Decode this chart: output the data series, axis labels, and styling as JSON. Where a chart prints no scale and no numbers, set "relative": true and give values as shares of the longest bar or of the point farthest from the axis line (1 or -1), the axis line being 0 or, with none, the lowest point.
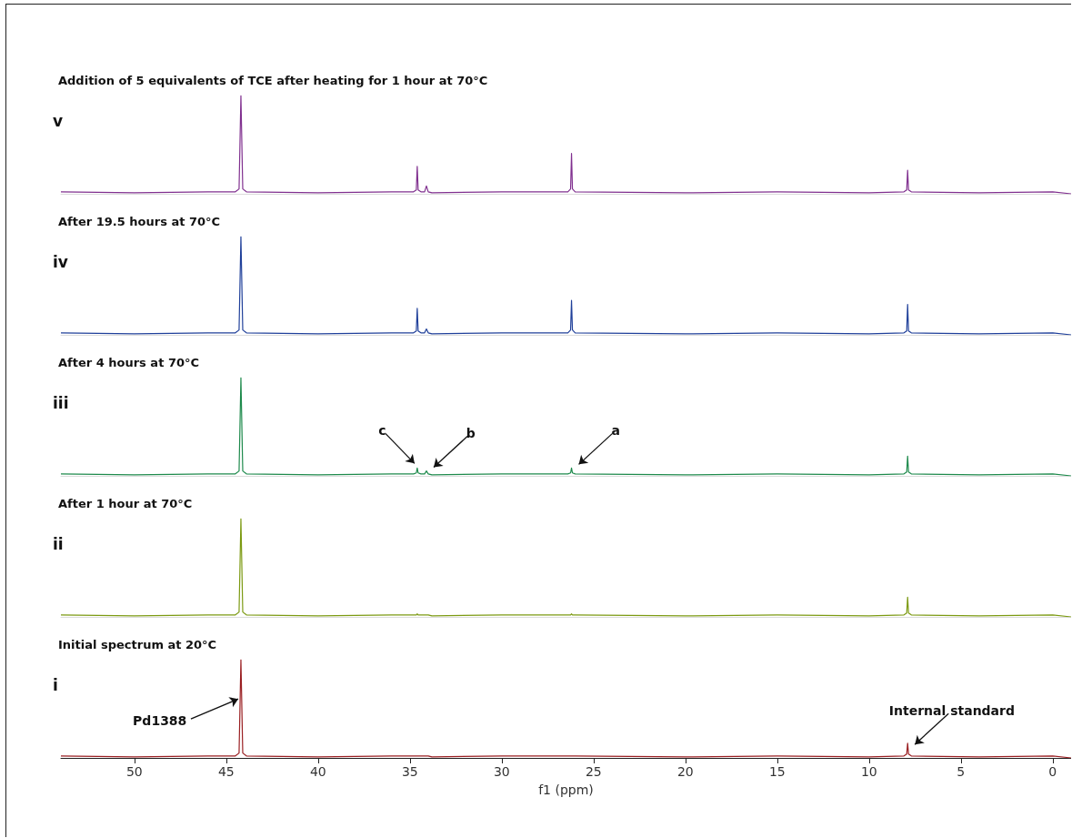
{
  "chart_data": [
    {
      "type": "line",
      "title": "Addition of 5 equivalents of TCE after heating for 1 hour at 70°C",
      "ylabel": "v",
      "relative": true,
      "xlim": [
        54,
        -1
      ],
      "tick_labels": false,
      "x": [
        54,
        50,
        46,
        44.5,
        44.3,
        44.2,
        44.1,
        43.9,
        40,
        36,
        34.8,
        34.65,
        34.6,
        34.55,
        34.4,
        34.2,
        34.1,
        34.0,
        33.8,
        30,
        26.4,
        26.25,
        26.2,
        26.15,
        26,
        20,
        15,
        10,
        8.1,
        7.95,
        7.9,
        7.85,
        7.7,
        4,
        0,
        -1
      ],
      "series": [
        {
          "color": "#80308f",
          "values": [
            0.02,
            0.01,
            0.02,
            0.02,
            0.05,
            1,
            0.05,
            0.02,
            0.01,
            0.02,
            0.02,
            0.04,
            0.28,
            0.04,
            0.02,
            0.02,
            0.08,
            0.02,
            0.01,
            0.02,
            0.02,
            0.05,
            0.41,
            0.05,
            0.02,
            0.01,
            0.02,
            0.01,
            0.02,
            0.04,
            0.24,
            0.04,
            0.02,
            0.01,
            0.02,
            0
          ]
        }
      ]
    },
    {
      "type": "line",
      "title": "After 19.5 hours at 70°C",
      "ylabel": "iv",
      "relative": true,
      "xlim": [
        54,
        -1
      ],
      "tick_labels": false,
      "x": [
        54,
        50,
        46,
        44.5,
        44.3,
        44.2,
        44.1,
        43.9,
        40,
        36,
        34.8,
        34.65,
        34.6,
        34.55,
        34.4,
        34.2,
        34.1,
        34.0,
        33.8,
        30,
        26.4,
        26.25,
        26.2,
        26.15,
        26,
        20,
        15,
        10,
        8.1,
        7.95,
        7.9,
        7.85,
        7.7,
        4,
        0,
        -1
      ],
      "series": [
        {
          "color": "#20409a",
          "values": [
            0.02,
            0.01,
            0.02,
            0.02,
            0.05,
            1,
            0.05,
            0.02,
            0.01,
            0.02,
            0.02,
            0.04,
            0.27,
            0.04,
            0.02,
            0.02,
            0.06,
            0.02,
            0.01,
            0.02,
            0.02,
            0.05,
            0.35,
            0.05,
            0.02,
            0.01,
            0.02,
            0.01,
            0.02,
            0.04,
            0.31,
            0.04,
            0.02,
            0.01,
            0.02,
            0
          ]
        }
      ]
    },
    {
      "type": "line",
      "title": "After 4 hours at 70°C",
      "ylabel": "iii",
      "relative": true,
      "xlim": [
        54,
        -1
      ],
      "tick_labels": false,
      "x": [
        54,
        50,
        46,
        44.5,
        44.3,
        44.2,
        44.1,
        43.9,
        40,
        36,
        34.8,
        34.65,
        34.6,
        34.55,
        34.4,
        34.2,
        34.1,
        34.0,
        33.8,
        30,
        26.4,
        26.25,
        26.2,
        26.15,
        26,
        20,
        15,
        10,
        8.1,
        7.95,
        7.9,
        7.85,
        7.7,
        4,
        0,
        -1
      ],
      "series": [
        {
          "color": "#1e8a4c",
          "values": [
            0.02,
            0.01,
            0.02,
            0.02,
            0.05,
            1,
            0.05,
            0.02,
            0.01,
            0.02,
            0.02,
            0.03,
            0.08,
            0.03,
            0.02,
            0.02,
            0.05,
            0.02,
            0.01,
            0.02,
            0.02,
            0.03,
            0.08,
            0.03,
            0.02,
            0.01,
            0.02,
            0.01,
            0.02,
            0.04,
            0.2,
            0.04,
            0.02,
            0.01,
            0.02,
            0
          ]
        }
      ],
      "annotations": [
        {
          "text": "c",
          "x": 34.6,
          "y": 0.08
        },
        {
          "text": "b",
          "x": 34.1,
          "y": 0.05
        },
        {
          "text": "a",
          "x": 26.2,
          "y": 0.08
        }
      ]
    },
    {
      "type": "line",
      "title": "After 1 hour at 70°C",
      "ylabel": "ii",
      "relative": true,
      "xlim": [
        54,
        -1
      ],
      "tick_labels": false,
      "x": [
        54,
        50,
        46,
        44.5,
        44.3,
        44.2,
        44.1,
        43.9,
        40,
        36,
        34.8,
        34.65,
        34.6,
        34.55,
        34.4,
        34.2,
        34.1,
        34.0,
        33.8,
        30,
        26.4,
        26.25,
        26.2,
        26.15,
        26,
        20,
        15,
        10,
        8.1,
        7.95,
        7.9,
        7.85,
        7.7,
        4,
        0,
        -1
      ],
      "series": [
        {
          "color": "#7c9a12",
          "values": [
            0.02,
            0.01,
            0.02,
            0.02,
            0.05,
            1,
            0.05,
            0.02,
            0.01,
            0.02,
            0.02,
            0.02,
            0.03,
            0.02,
            0.02,
            0.02,
            0.02,
            0.02,
            0.01,
            0.02,
            0.02,
            0.02,
            0.03,
            0.02,
            0.02,
            0.01,
            0.02,
            0.01,
            0.02,
            0.04,
            0.2,
            0.04,
            0.02,
            0.01,
            0.02,
            0
          ]
        }
      ]
    },
    {
      "type": "line",
      "title": "Initial spectrum at 20°C",
      "ylabel": "i",
      "xlabel": "f1 (ppm)",
      "relative": true,
      "xlim": [
        54,
        -1
      ],
      "xticks": [
        50,
        45,
        40,
        35,
        30,
        25,
        20,
        15,
        10,
        5,
        0
      ],
      "tick_labels": "x",
      "x": [
        54,
        50,
        46,
        44.5,
        44.3,
        44.2,
        44.1,
        43.9,
        40,
        36,
        34.8,
        34.65,
        34.6,
        34.55,
        34.4,
        34.2,
        34.1,
        34.0,
        33.8,
        30,
        26.4,
        26.25,
        26.2,
        26.15,
        26,
        20,
        15,
        10,
        8.1,
        7.95,
        7.9,
        7.85,
        7.7,
        4,
        0,
        -1
      ],
      "series": [
        {
          "color": "#9a1f22",
          "values": [
            0.02,
            0.01,
            0.02,
            0.02,
            0.05,
            1,
            0.05,
            0.02,
            0.01,
            0.02,
            0.02,
            0.02,
            0.02,
            0.02,
            0.02,
            0.02,
            0.02,
            0.02,
            0.01,
            0.02,
            0.02,
            0.02,
            0.02,
            0.02,
            0.02,
            0.01,
            0.02,
            0.01,
            0.02,
            0.04,
            0.15,
            0.04,
            0.02,
            0.01,
            0.02,
            0
          ]
        }
      ],
      "annotations": [
        {
          "text": "Pd1388",
          "x": 44.2,
          "y": 0.6
        },
        {
          "text": "Internal standard",
          "x": 7.9,
          "y": 0.1
        }
      ]
    }
  ]
}
